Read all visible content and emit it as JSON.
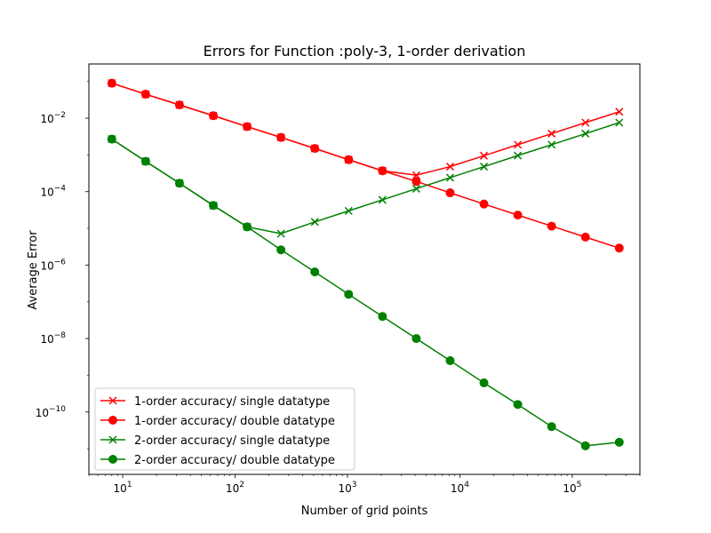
{
  "chart_data": {
    "type": "line",
    "title": "Errors for Function :poly-3, 1-order derivation",
    "xlabel": "Number of grid points",
    "ylabel": "Average Error",
    "xscale": "log",
    "yscale": "log",
    "xlim": [
      5,
      400000
    ],
    "ylim": [
      2e-12,
      0.3
    ],
    "grid": false,
    "legend_position": "lower-left",
    "x_ticks": [
      {
        "value": 10,
        "base": "10",
        "exp": "1"
      },
      {
        "value": 100,
        "base": "10",
        "exp": "2"
      },
      {
        "value": 1000,
        "base": "10",
        "exp": "3"
      },
      {
        "value": 10000,
        "base": "10",
        "exp": "4"
      },
      {
        "value": 100000,
        "base": "10",
        "exp": "5"
      }
    ],
    "y_ticks": [
      {
        "value": 0.01,
        "base": "10",
        "exp": "−2"
      },
      {
        "value": 0.0001,
        "base": "10",
        "exp": "−4"
      },
      {
        "value": 1e-06,
        "base": "10",
        "exp": "−6"
      },
      {
        "value": 1e-08,
        "base": "10",
        "exp": "−8"
      },
      {
        "value": 1e-10,
        "base": "10",
        "exp": "−10"
      }
    ],
    "x": [
      8,
      16,
      32,
      64,
      128,
      256,
      512,
      1024,
      2048,
      4096,
      8192,
      16384,
      32768,
      65536,
      131072,
      262144
    ],
    "series": [
      {
        "name": "1-order accuracy/ single datatype",
        "color": "#ff0000",
        "marker": "x",
        "values": [
          0.09,
          0.045,
          0.023,
          0.0117,
          0.0059,
          0.003,
          0.0015,
          0.00074,
          0.00037,
          0.00028,
          0.00048,
          0.00095,
          0.0019,
          0.0038,
          0.0076,
          0.015
        ]
      },
      {
        "name": "1-order accuracy/ double datatype",
        "color": "#ff0000",
        "marker": "o",
        "values": [
          0.09,
          0.045,
          0.023,
          0.0117,
          0.0059,
          0.003,
          0.0015,
          0.00074,
          0.00037,
          0.00019,
          9.3e-05,
          4.6e-05,
          2.3e-05,
          1.15e-05,
          5.8e-06,
          2.9e-06
        ]
      },
      {
        "name": "2-order accuracy/ single datatype",
        "color": "#008000",
        "marker": "x",
        "values": [
          0.0027,
          0.00067,
          0.00017,
          4.2e-05,
          1.1e-05,
          7.2e-06,
          1.5e-05,
          3e-05,
          6e-05,
          0.00012,
          0.00024,
          0.00048,
          0.00096,
          0.0019,
          0.0038,
          0.0076
        ]
      },
      {
        "name": "2-order accuracy/ double datatype",
        "color": "#008000",
        "marker": "o",
        "values": [
          0.0027,
          0.00067,
          0.00017,
          4.2e-05,
          1.1e-05,
          2.6e-06,
          6.5e-07,
          1.6e-07,
          4e-08,
          1e-08,
          2.5e-09,
          6.2e-10,
          1.6e-10,
          4e-11,
          1.2e-11,
          1.5e-11
        ]
      }
    ]
  }
}
